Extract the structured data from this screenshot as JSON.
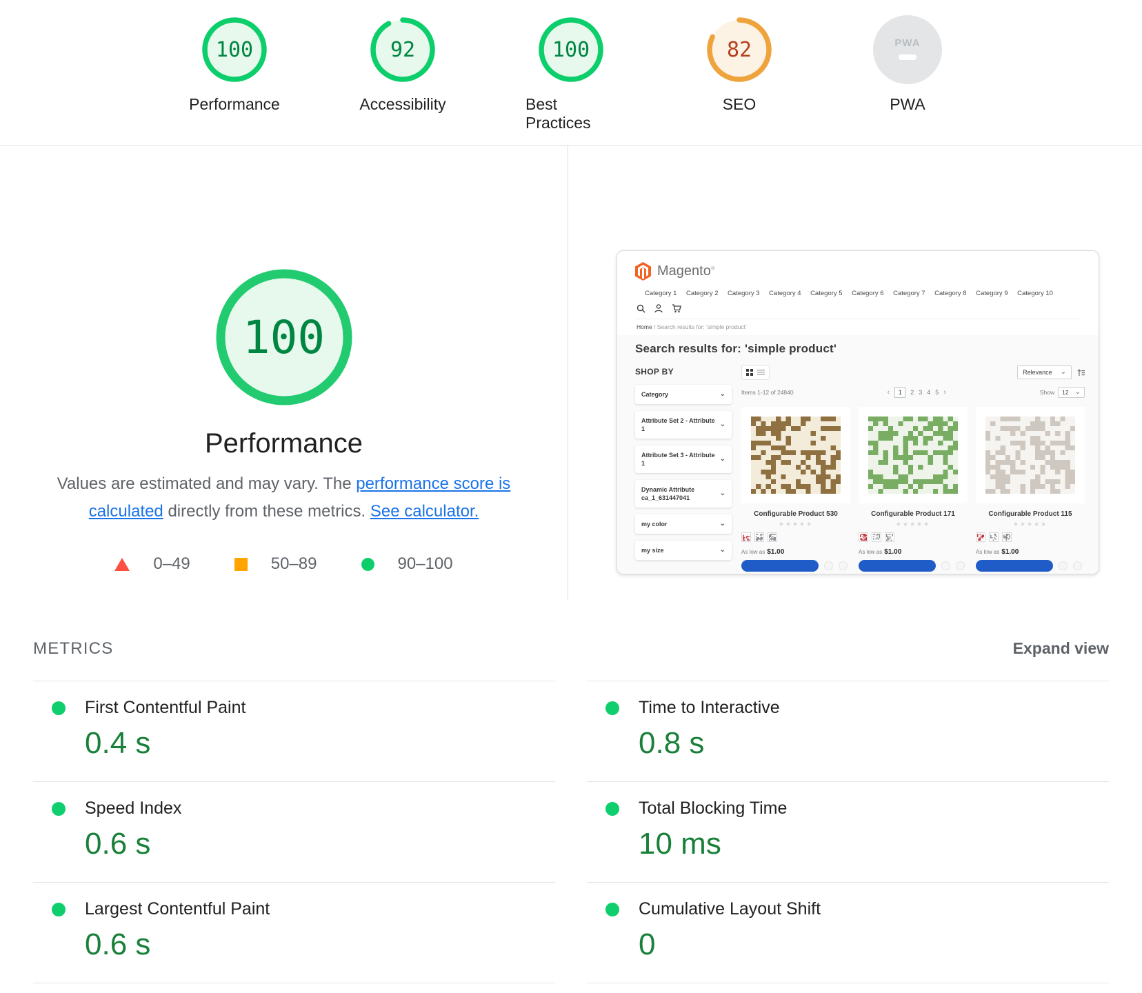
{
  "summary": {
    "gauges": [
      {
        "label": "Performance",
        "score": 100
      },
      {
        "label": "Accessibility",
        "score": 92
      },
      {
        "label": "Best Practices",
        "score": 100
      },
      {
        "label": "SEO",
        "score": 82
      },
      {
        "label": "PWA",
        "score": null
      }
    ],
    "pwa_text": "PWA"
  },
  "score_block": {
    "score": 100,
    "score_text": "100",
    "title": "Performance",
    "desc_part1": "Values are estimated and may vary. The ",
    "link1": "performance score is calculated",
    "desc_part2": " directly from these metrics. ",
    "link2": "See calculator.",
    "legend": [
      {
        "range": "0–49"
      },
      {
        "range": "50–89"
      },
      {
        "range": "90–100"
      }
    ]
  },
  "screenshot": {
    "brand": "Magento",
    "trademark": "®",
    "nav": [
      "Category 1",
      "Category 2",
      "Category 3",
      "Category 4",
      "Category 5",
      "Category 6",
      "Category 7",
      "Category 8",
      "Category 9",
      "Category 10"
    ],
    "breadcrumb_home": "Home",
    "breadcrumb_rest": "/  Search results for: 'simple product'",
    "page_title": "Search results for: 'simple product'",
    "shop_by": "SHOP BY",
    "filters": [
      "Category",
      "Attribute Set 2 - Attribute 1",
      "Attribute Set 3 - Attribute 1",
      "Dynamic Attribute ca_1_631447041",
      "my color",
      "my size"
    ],
    "sort_label": "Relevance",
    "items_count": "Items 1-12 of 24840",
    "pager_prev": "‹",
    "pager_next": "›",
    "pages": [
      "1",
      "2",
      "3",
      "4",
      "5"
    ],
    "show_label": "Show",
    "show_value": "12",
    "stars": "★★★★★",
    "products": [
      {
        "title": "Configurable Product 530",
        "price_prefix": "As low as",
        "price": "$1.00",
        "fg": "#8f7040",
        "bg": "#f3ecdb"
      },
      {
        "title": "Configurable Product 171",
        "price_prefix": "As low as",
        "price": "$1.00",
        "fg": "#79ad63",
        "bg": "#eef4ea"
      },
      {
        "title": "Configurable Product 115",
        "price_prefix": "As low as",
        "price": "$1.00",
        "fg": "#cfc8c0",
        "bg": "#f6f4f1"
      }
    ],
    "swatch_red": {
      "fg": "#c03a44",
      "bg": "#fdf5f5"
    },
    "swatch_gray": {
      "fg": "#8b8f94",
      "bg": "#fbfbfb"
    }
  },
  "metrics": {
    "heading": "METRICS",
    "expand_label": "Expand view",
    "items": [
      {
        "name": "First Contentful Paint",
        "value": "0.4 s"
      },
      {
        "name": "Speed Index",
        "value": "0.6 s"
      },
      {
        "name": "Largest Contentful Paint",
        "value": "0.6 s"
      },
      {
        "name": "Time to Interactive",
        "value": "0.8 s"
      },
      {
        "name": "Total Blocking Time",
        "value": "10 ms"
      },
      {
        "name": "Cumulative Layout Shift",
        "value": "0"
      }
    ]
  },
  "colors": {
    "pass_green": "#0cce6b",
    "green_text": "#018642",
    "average_orange": "#ffa400",
    "orange_text": "#b5401f",
    "fail_red": "#ff4e42",
    "link_blue": "#1a73e8",
    "metric_value_green": "#188038"
  }
}
